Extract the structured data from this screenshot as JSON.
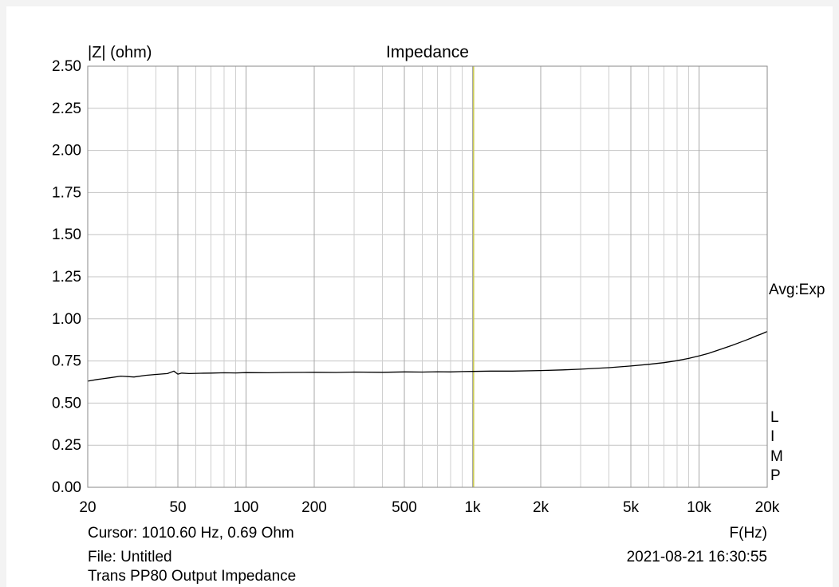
{
  "chart_data": {
    "type": "line",
    "title": "Impedance",
    "ylabel": "|Z| (ohm)",
    "xlabel": "F(Hz)",
    "xscale": "log",
    "xlim": [
      20,
      20000
    ],
    "ylim": [
      0,
      2.5
    ],
    "grid": true,
    "yticks": [
      {
        "v": 0.0,
        "label": "0.00"
      },
      {
        "v": 0.25,
        "label": "0.25"
      },
      {
        "v": 0.5,
        "label": "0.50"
      },
      {
        "v": 0.75,
        "label": "0.75"
      },
      {
        "v": 1.0,
        "label": "1.00"
      },
      {
        "v": 1.25,
        "label": "1.25"
      },
      {
        "v": 1.5,
        "label": "1.50"
      },
      {
        "v": 1.75,
        "label": "1.75"
      },
      {
        "v": 2.0,
        "label": "2.00"
      },
      {
        "v": 2.25,
        "label": "2.25"
      },
      {
        "v": 2.5,
        "label": "2.50"
      }
    ],
    "xticks": [
      {
        "v": 20,
        "label": "20"
      },
      {
        "v": 50,
        "label": "50"
      },
      {
        "v": 100,
        "label": "100"
      },
      {
        "v": 200,
        "label": "200"
      },
      {
        "v": 500,
        "label": "500"
      },
      {
        "v": 1000,
        "label": "1k"
      },
      {
        "v": 2000,
        "label": "2k"
      },
      {
        "v": 5000,
        "label": "5k"
      },
      {
        "v": 10000,
        "label": "10k"
      },
      {
        "v": 20000,
        "label": "20k"
      }
    ],
    "cursor": {
      "x": 1010.6,
      "color": "#c8c84a"
    },
    "series": [
      {
        "color": "#000000",
        "x": [
          20,
          22,
          25,
          28,
          32,
          36,
          40,
          45,
          48,
          50,
          52,
          56,
          63,
          70,
          80,
          90,
          100,
          125,
          150,
          200,
          250,
          300,
          400,
          500,
          600,
          700,
          800,
          900,
          1000,
          1200,
          1500,
          2000,
          2500,
          3000,
          4000,
          5000,
          6000,
          7000,
          8000,
          9000,
          10000,
          11000,
          12000,
          13000,
          14000,
          15000,
          16000,
          17000,
          18000,
          19000,
          20000
        ],
        "y": [
          0.63,
          0.64,
          0.65,
          0.66,
          0.655,
          0.665,
          0.67,
          0.675,
          0.69,
          0.672,
          0.678,
          0.675,
          0.677,
          0.678,
          0.68,
          0.679,
          0.681,
          0.68,
          0.682,
          0.683,
          0.682,
          0.684,
          0.683,
          0.685,
          0.684,
          0.686,
          0.685,
          0.687,
          0.688,
          0.69,
          0.69,
          0.693,
          0.697,
          0.701,
          0.71,
          0.72,
          0.73,
          0.74,
          0.752,
          0.765,
          0.78,
          0.795,
          0.812,
          0.828,
          0.843,
          0.858,
          0.872,
          0.886,
          0.9,
          0.912,
          0.925
        ]
      }
    ],
    "side_label": "Avg:Exp",
    "side_letters": [
      "L",
      "I",
      "M",
      "P"
    ]
  },
  "footer": {
    "cursor": "Cursor: 1010.60 Hz, 0.69 Ohm",
    "file": "File: Untitled",
    "description": "Trans PP80  Output Impedance",
    "timestamp": "2021-08-21 16:30:55"
  }
}
